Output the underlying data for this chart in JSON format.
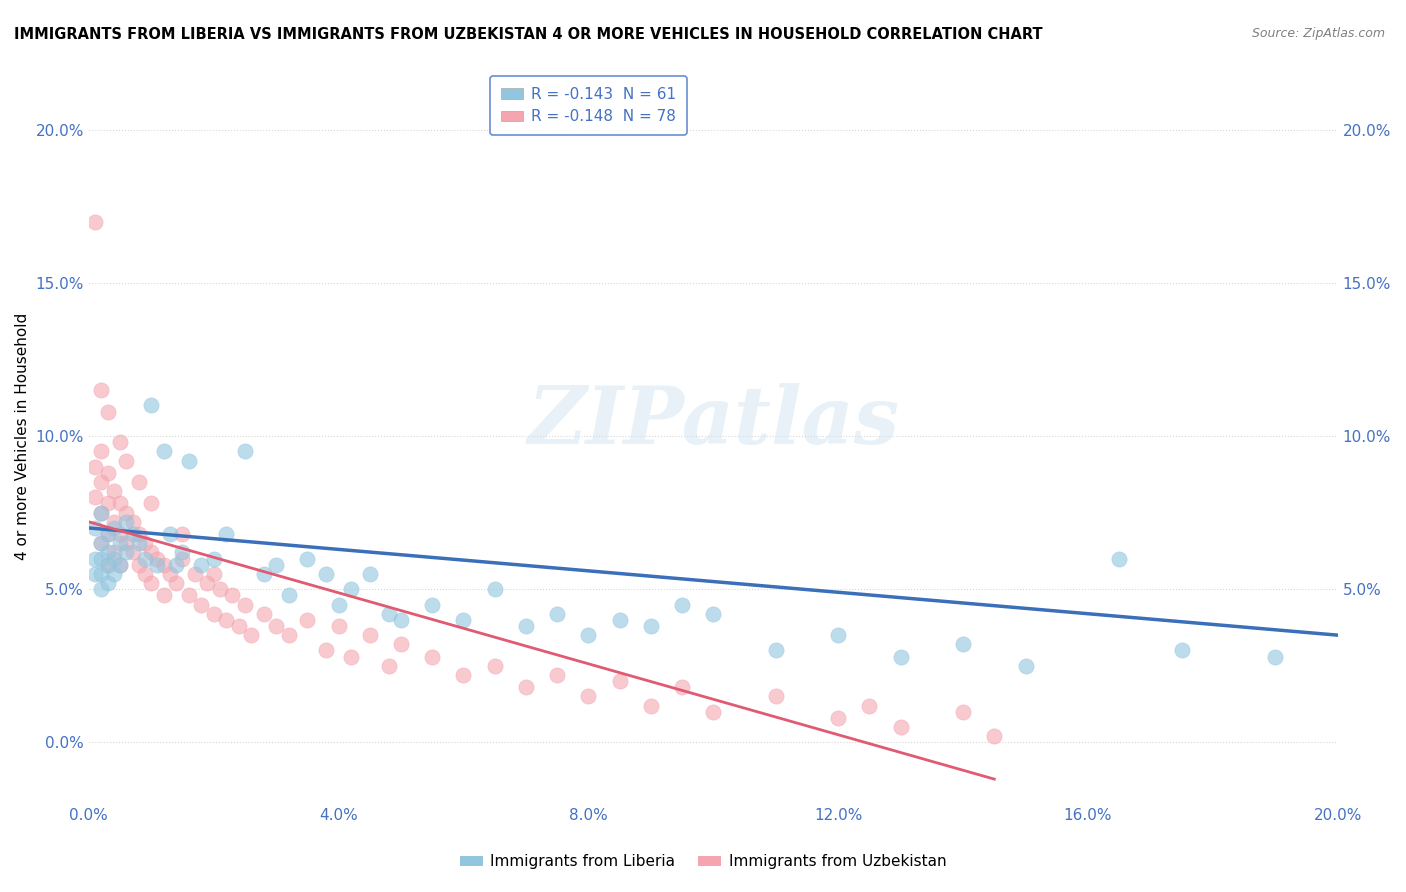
{
  "title": "IMMIGRANTS FROM LIBERIA VS IMMIGRANTS FROM UZBEKISTAN 4 OR MORE VEHICLES IN HOUSEHOLD CORRELATION CHART",
  "source": "Source: ZipAtlas.com",
  "ylabel": "4 or more Vehicles in Household",
  "xlim": [
    0.0,
    0.2
  ],
  "ylim": [
    -0.02,
    0.22
  ],
  "xticks": [
    0.0,
    0.04,
    0.08,
    0.12,
    0.16,
    0.2
  ],
  "yticks": [
    0.0,
    0.05,
    0.1,
    0.15,
    0.2
  ],
  "xticklabels": [
    "0.0%",
    "4.0%",
    "8.0%",
    "12.0%",
    "16.0%",
    "20.0%"
  ],
  "yticklabels": [
    "0.0%",
    "5.0%",
    "10.0%",
    "15.0%",
    "20.0%"
  ],
  "legend_entries": [
    {
      "label": "R = -0.143  N = 61",
      "color": "#92c5de"
    },
    {
      "label": "R = -0.148  N = 78",
      "color": "#f4a5b0"
    }
  ],
  "series1_name": "Immigrants from Liberia",
  "series2_name": "Immigrants from Uzbekistan",
  "series1_color": "#92c5de",
  "series2_color": "#f4a5b0",
  "series1_line_color": "#3b6fba",
  "series2_line_color": "#e05a72",
  "watermark": "ZIPatlas",
  "liberia_x": [
    0.001,
    0.001,
    0.001,
    0.002,
    0.002,
    0.002,
    0.002,
    0.002,
    0.003,
    0.003,
    0.003,
    0.003,
    0.004,
    0.004,
    0.004,
    0.005,
    0.005,
    0.006,
    0.006,
    0.007,
    0.008,
    0.009,
    0.01,
    0.011,
    0.012,
    0.013,
    0.014,
    0.015,
    0.016,
    0.018,
    0.02,
    0.022,
    0.025,
    0.028,
    0.03,
    0.032,
    0.035,
    0.038,
    0.04,
    0.042,
    0.045,
    0.048,
    0.05,
    0.055,
    0.06,
    0.065,
    0.07,
    0.075,
    0.08,
    0.085,
    0.09,
    0.095,
    0.1,
    0.11,
    0.12,
    0.13,
    0.14,
    0.15,
    0.165,
    0.175,
    0.19
  ],
  "liberia_y": [
    0.07,
    0.06,
    0.055,
    0.075,
    0.065,
    0.06,
    0.055,
    0.05,
    0.068,
    0.058,
    0.062,
    0.052,
    0.07,
    0.06,
    0.055,
    0.065,
    0.058,
    0.072,
    0.062,
    0.068,
    0.065,
    0.06,
    0.11,
    0.058,
    0.095,
    0.068,
    0.058,
    0.062,
    0.092,
    0.058,
    0.06,
    0.068,
    0.095,
    0.055,
    0.058,
    0.048,
    0.06,
    0.055,
    0.045,
    0.05,
    0.055,
    0.042,
    0.04,
    0.045,
    0.04,
    0.05,
    0.038,
    0.042,
    0.035,
    0.04,
    0.038,
    0.045,
    0.042,
    0.03,
    0.035,
    0.028,
    0.032,
    0.025,
    0.06,
    0.03,
    0.028
  ],
  "uzbekistan_x": [
    0.001,
    0.001,
    0.001,
    0.002,
    0.002,
    0.002,
    0.002,
    0.003,
    0.003,
    0.003,
    0.003,
    0.004,
    0.004,
    0.004,
    0.005,
    0.005,
    0.005,
    0.006,
    0.006,
    0.007,
    0.007,
    0.008,
    0.008,
    0.009,
    0.009,
    0.01,
    0.01,
    0.011,
    0.012,
    0.012,
    0.013,
    0.014,
    0.015,
    0.016,
    0.017,
    0.018,
    0.019,
    0.02,
    0.021,
    0.022,
    0.023,
    0.024,
    0.025,
    0.026,
    0.028,
    0.03,
    0.032,
    0.035,
    0.038,
    0.04,
    0.042,
    0.045,
    0.048,
    0.05,
    0.055,
    0.06,
    0.065,
    0.07,
    0.075,
    0.08,
    0.085,
    0.09,
    0.095,
    0.1,
    0.11,
    0.12,
    0.125,
    0.13,
    0.14,
    0.145,
    0.002,
    0.003,
    0.005,
    0.006,
    0.008,
    0.01,
    0.015,
    0.02
  ],
  "uzbekistan_y": [
    0.17,
    0.09,
    0.08,
    0.095,
    0.085,
    0.075,
    0.065,
    0.088,
    0.078,
    0.068,
    0.058,
    0.082,
    0.072,
    0.062,
    0.078,
    0.068,
    0.058,
    0.075,
    0.065,
    0.072,
    0.062,
    0.068,
    0.058,
    0.065,
    0.055,
    0.062,
    0.052,
    0.06,
    0.058,
    0.048,
    0.055,
    0.052,
    0.06,
    0.048,
    0.055,
    0.045,
    0.052,
    0.042,
    0.05,
    0.04,
    0.048,
    0.038,
    0.045,
    0.035,
    0.042,
    0.038,
    0.035,
    0.04,
    0.03,
    0.038,
    0.028,
    0.035,
    0.025,
    0.032,
    0.028,
    0.022,
    0.025,
    0.018,
    0.022,
    0.015,
    0.02,
    0.012,
    0.018,
    0.01,
    0.015,
    0.008,
    0.012,
    0.005,
    0.01,
    0.002,
    0.115,
    0.108,
    0.098,
    0.092,
    0.085,
    0.078,
    0.068,
    0.055
  ],
  "liberia_trend_x": [
    0.0,
    0.2
  ],
  "liberia_trend_y": [
    0.07,
    0.035
  ],
  "uzbekistan_trend_x": [
    0.0,
    0.145
  ],
  "uzbekistan_trend_y": [
    0.072,
    -0.012
  ]
}
